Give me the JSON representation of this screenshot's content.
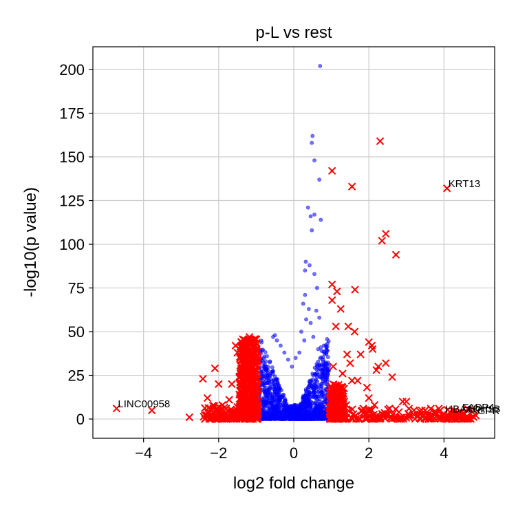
{
  "chart_data": {
    "type": "scatter",
    "title": "p-L vs rest",
    "xlabel": "log2 fold change",
    "ylabel": "-log10(p value)",
    "xlim": [
      -5.35,
      5.35
    ],
    "ylim": [
      -11,
      213
    ],
    "xticks": [
      -4,
      -2,
      0,
      2,
      4
    ],
    "xtick_labels": [
      "−4",
      "−2",
      "0",
      "2",
      "4"
    ],
    "yticks": [
      0,
      25,
      50,
      75,
      100,
      125,
      150,
      175,
      200
    ],
    "ytick_labels": [
      "0",
      "25",
      "50",
      "75",
      "100",
      "125",
      "150",
      "175",
      "200"
    ],
    "grid": true,
    "legend": "none",
    "colors": {
      "nonsignificant": "#0000ff",
      "significant": "#ff0000"
    },
    "series": [
      {
        "marker": "circle",
        "color": "#0000ff",
        "points": [
          [
            0.7,
            202
          ],
          [
            0.5,
            162
          ],
          [
            0.48,
            158
          ],
          [
            0.55,
            148
          ],
          [
            0.68,
            137
          ],
          [
            0.38,
            121
          ],
          [
            0.45,
            116
          ],
          [
            0.55,
            117
          ],
          [
            0.72,
            114
          ],
          [
            0.48,
            108
          ],
          [
            0.32,
            90
          ],
          [
            0.42,
            88
          ],
          [
            0.3,
            85
          ],
          [
            0.55,
            83
          ],
          [
            0.62,
            75
          ],
          [
            0.3,
            71
          ],
          [
            0.25,
            66
          ],
          [
            0.4,
            63
          ],
          [
            0.6,
            62
          ],
          [
            0.33,
            57
          ],
          [
            0.45,
            55
          ],
          [
            0.68,
            58
          ],
          [
            0.72,
            41
          ],
          [
            0.65,
            40
          ],
          [
            0.52,
            47
          ],
          [
            0.8,
            42
          ],
          [
            0.9,
            39
          ],
          [
            0.85,
            30
          ],
          [
            0.78,
            33
          ],
          [
            0.2,
            50
          ],
          [
            -0.5,
            48
          ],
          [
            -0.55,
            47
          ],
          [
            -0.45,
            45
          ],
          [
            -0.35,
            42
          ],
          [
            -0.25,
            38
          ],
          [
            -0.15,
            34
          ],
          [
            -0.05,
            30
          ],
          [
            0.05,
            35
          ],
          [
            0.15,
            38
          ],
          [
            0.28,
            45
          ]
        ],
        "cloud": {
          "x_range": [
            -0.95,
            0.95
          ],
          "y_range": [
            0,
            48
          ]
        }
      },
      {
        "marker": "x",
        "color": "#ff0000",
        "points": [
          [
            2.3,
            159
          ],
          [
            1.02,
            142
          ],
          [
            1.55,
            133
          ],
          [
            4.08,
            132
          ],
          [
            2.45,
            106
          ],
          [
            2.35,
            102
          ],
          [
            2.72,
            94
          ],
          [
            1.02,
            77
          ],
          [
            1.15,
            73
          ],
          [
            1.63,
            74
          ],
          [
            1.02,
            68
          ],
          [
            1.25,
            63
          ],
          [
            1.12,
            53
          ],
          [
            1.45,
            53
          ],
          [
            1.62,
            50
          ],
          [
            2.0,
            44
          ],
          [
            2.08,
            42
          ],
          [
            2.1,
            40
          ],
          [
            1.78,
            37
          ],
          [
            1.42,
            37
          ],
          [
            1.5,
            32
          ],
          [
            2.2,
            28
          ],
          [
            2.25,
            30
          ],
          [
            2.45,
            32
          ],
          [
            2.62,
            24
          ],
          [
            1.05,
            30
          ],
          [
            1.3,
            26
          ],
          [
            1.55,
            22
          ],
          [
            1.7,
            22
          ],
          [
            1.95,
            18
          ],
          [
            2.0,
            12
          ],
          [
            2.15,
            8
          ],
          [
            2.9,
            10
          ],
          [
            3.0,
            10
          ],
          [
            3.2,
            5
          ],
          [
            3.5,
            5
          ],
          [
            3.65,
            6
          ],
          [
            3.9,
            5
          ],
          [
            4.15,
            4
          ],
          [
            4.45,
            4
          ],
          [
            4.55,
            3
          ],
          [
            4.75,
            4
          ],
          [
            4.85,
            2
          ],
          [
            3.3,
            2
          ],
          [
            3.05,
            3
          ],
          [
            2.8,
            4
          ],
          [
            2.55,
            6
          ],
          [
            2.35,
            3
          ],
          [
            1.85,
            6
          ],
          [
            1.4,
            8
          ],
          [
            -4.72,
            6
          ],
          [
            -3.78,
            5
          ],
          [
            -2.78,
            1
          ],
          [
            -2.42,
            23
          ],
          [
            -2.3,
            12
          ],
          [
            -2.3,
            4
          ],
          [
            -2.1,
            29
          ],
          [
            -2.0,
            20
          ],
          [
            -2.05,
            5
          ],
          [
            -1.9,
            8
          ],
          [
            -1.55,
            42
          ],
          [
            -1.5,
            38
          ],
          [
            -1.42,
            35
          ],
          [
            -1.35,
            31
          ],
          [
            -1.28,
            28
          ],
          [
            -1.22,
            44
          ],
          [
            -1.18,
            47
          ],
          [
            -1.15,
            24
          ],
          [
            -1.1,
            20
          ],
          [
            -1.08,
            15
          ],
          [
            -1.65,
            20
          ],
          [
            -1.72,
            11
          ],
          [
            -1.8,
            6
          ],
          [
            -1.6,
            4
          ],
          [
            -1.45,
            14
          ],
          [
            -1.3,
            9
          ],
          [
            -2.2,
            3
          ],
          [
            -1.95,
            2
          ],
          [
            -1.7,
            3
          ],
          [
            -1.5,
            5
          ]
        ],
        "cloud": {
          "x_range": [
            -1.45,
            -0.95
          ],
          "y_range": [
            0,
            46
          ]
        },
        "cloud2": {
          "x_range": [
            0.95,
            1.35
          ],
          "y_range": [
            0,
            20
          ]
        }
      }
    ],
    "annotations": [
      {
        "text": "KRT13",
        "x": 4.08,
        "y": 132
      },
      {
        "text": "LINC00958",
        "x": -4.72,
        "y": 6
      },
      {
        "text": "HBA1",
        "x": 4.0,
        "y": 3
      },
      {
        "text": "FABP4",
        "x": 4.45,
        "y": 4
      },
      {
        "text": "ADH1B",
        "x": 4.55,
        "y": 3
      },
      {
        "text": "GPR",
        "x": 4.85,
        "y": 2
      }
    ]
  }
}
